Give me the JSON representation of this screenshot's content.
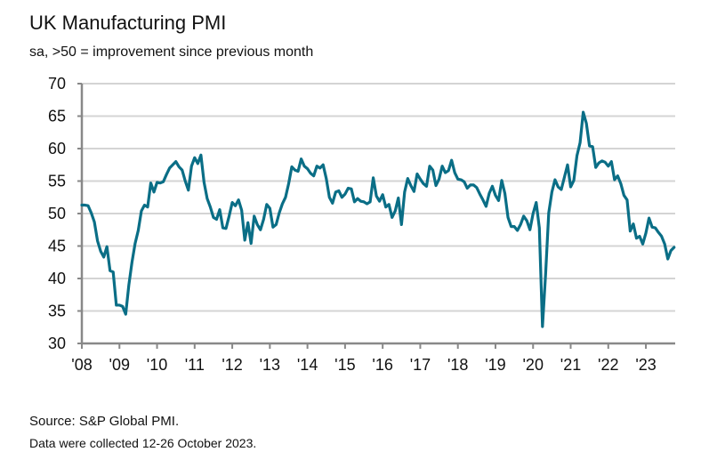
{
  "title": "UK Manufacturing PMI",
  "subtitle": "sa, >50 = improvement since previous month",
  "source": "Source: S&P Global PMI.",
  "note": "Data were collected 12-26 October 2023.",
  "colors": {
    "line": "#0a6e86",
    "grid": "#d4d4d4",
    "axis": "#888888"
  },
  "chart_data": {
    "type": "line",
    "title": "UK Manufacturing PMI",
    "subtitle": "sa, >50 = improvement since previous month",
    "xlabel": "",
    "ylabel": "",
    "ylim": [
      30,
      70
    ],
    "yticks": [
      30,
      35,
      40,
      45,
      50,
      55,
      60,
      65,
      70
    ],
    "xticks": [
      "'08",
      "'09",
      "'10",
      "'11",
      "'12",
      "'13",
      "'14",
      "'15",
      "'16",
      "'17",
      "'18",
      "'19",
      "'20",
      "'21",
      "'22",
      "'23"
    ],
    "x_start": "2008-01",
    "x_end": "2023-10",
    "frequency": "monthly",
    "grid": true,
    "legend": "none",
    "series": [
      {
        "name": "UK Manufacturing PMI",
        "values": [
          51.3,
          51.3,
          51.2,
          50.1,
          48.7,
          45.8,
          44.2,
          43.3,
          44.9,
          41.2,
          41.0,
          35.9,
          35.9,
          35.7,
          34.5,
          39.0,
          42.5,
          45.4,
          47.4,
          50.4,
          51.3,
          51.0,
          54.7,
          53.3,
          54.8,
          54.7,
          54.9,
          56.0,
          57.0,
          57.5,
          58.0,
          57.2,
          56.7,
          55.0,
          53.6,
          57.3,
          58.6,
          57.7,
          59.0,
          54.8,
          52.3,
          51.0,
          49.4,
          49.1,
          50.6,
          47.8,
          47.7,
          49.6,
          51.7,
          51.2,
          52.1,
          50.5,
          45.9,
          48.6,
          45.4,
          49.6,
          48.3,
          47.5,
          49.1,
          51.4,
          50.8,
          47.9,
          48.3,
          50.1,
          51.5,
          52.5,
          54.6,
          57.2,
          56.7,
          56.5,
          58.4,
          57.3,
          56.9,
          56.2,
          55.8,
          57.3,
          57.0,
          57.5,
          55.4,
          52.5,
          51.6,
          53.3,
          53.5,
          52.5,
          53.0,
          53.9,
          53.8,
          51.8,
          52.3,
          51.9,
          51.8,
          51.5,
          51.8,
          55.5,
          52.7,
          51.9,
          52.9,
          51.0,
          51.4,
          49.4,
          50.4,
          52.4,
          48.3,
          53.3,
          55.4,
          54.3,
          53.4,
          56.1,
          55.3,
          54.6,
          54.2,
          57.3,
          56.7,
          54.3,
          55.3,
          57.3,
          56.3,
          56.6,
          58.2,
          56.3,
          55.3,
          55.2,
          54.9,
          53.9,
          54.4,
          54.4,
          54.0,
          53.0,
          52.1,
          51.1,
          53.1,
          54.2,
          52.8,
          52.0,
          55.1,
          53.1,
          49.4,
          48.0,
          48.0,
          47.4,
          48.3,
          49.6,
          48.9,
          47.5,
          50.0,
          51.7,
          47.8,
          32.6,
          40.7,
          50.1,
          53.3,
          55.2,
          54.1,
          53.7,
          55.6,
          57.5,
          54.1,
          55.1,
          58.9,
          60.9,
          65.6,
          63.9,
          60.4,
          60.3,
          57.1,
          57.8,
          58.1,
          57.9,
          57.3,
          58.0,
          55.2,
          55.8,
          54.6,
          52.8,
          52.1,
          47.3,
          48.4,
          46.2,
          46.5,
          45.3,
          47.0,
          49.3,
          47.9,
          47.8,
          47.1,
          46.5,
          45.3,
          43.0,
          44.3,
          44.8
        ]
      }
    ]
  }
}
